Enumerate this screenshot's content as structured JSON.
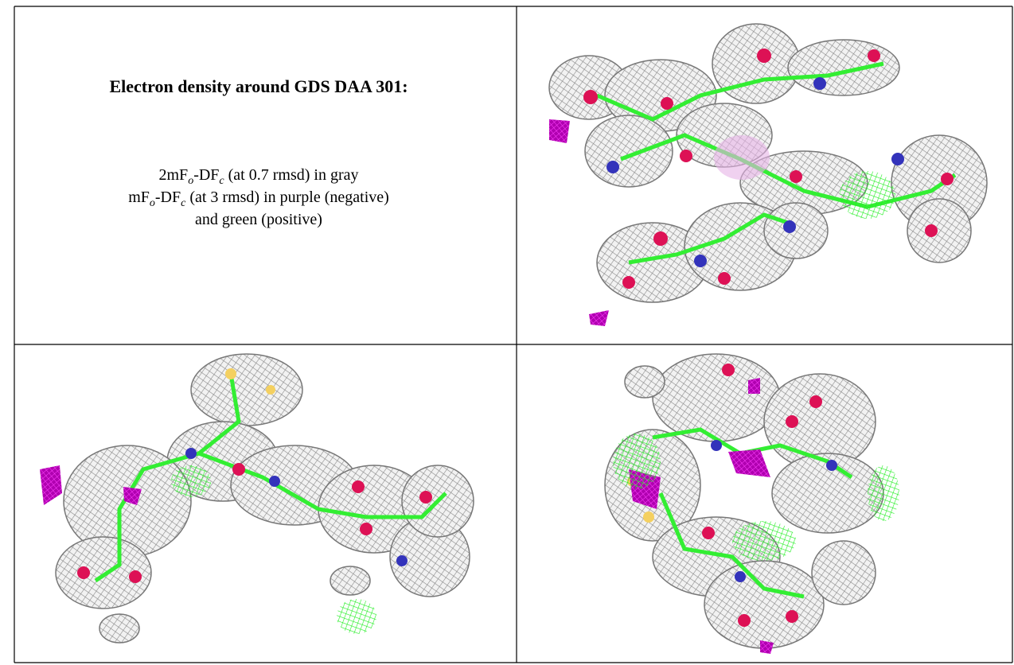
{
  "caption": {
    "title": "Electron density around GDS DAA 301:",
    "lines": [
      [
        {
          "text": "2mF"
        },
        {
          "sub": "o"
        },
        {
          "text": "-DF"
        },
        {
          "sub": "c"
        },
        {
          "text": " (at 0.7 rmsd) in gray"
        }
      ],
      [
        {
          "text": "mF"
        },
        {
          "sub": "o"
        },
        {
          "text": "-DF"
        },
        {
          "sub": "c"
        },
        {
          "text": " (at 3 rmsd) in purple (negative)"
        }
      ],
      [
        {
          "text": "and green (positive)"
        }
      ]
    ]
  }
}
